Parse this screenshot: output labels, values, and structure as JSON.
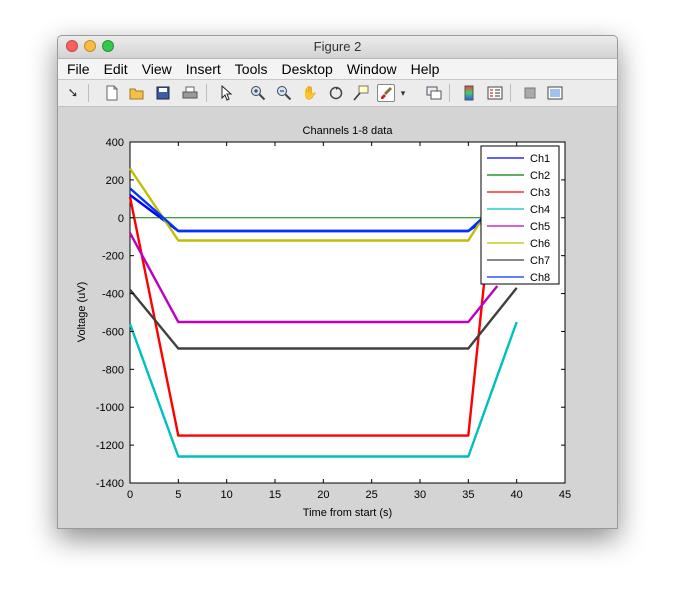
{
  "window": {
    "title": "Figure 2",
    "menu": [
      "File",
      "Edit",
      "View",
      "Insert",
      "Tools",
      "Desktop",
      "Window",
      "Help"
    ],
    "traffic_light_colors": [
      "#fc605c",
      "#fdbc40",
      "#34c84a"
    ],
    "toolbar_icons": [
      "dock-arrow-icon",
      "new-figure-icon",
      "open-file-icon",
      "save-icon",
      "print-icon",
      "pointer-icon",
      "zoom-in-icon",
      "zoom-out-icon",
      "pan-hand-icon",
      "rotate-3d-icon",
      "data-cursor-icon",
      "brush-icon",
      "brush-dropdown-icon",
      "link-plot-icon",
      "colorbar-icon",
      "legend-icon",
      "hide-plot-tools-icon",
      "show-plot-tools-icon"
    ]
  },
  "chart_data": {
    "type": "line",
    "title": "Channels 1-8 data",
    "xlabel": "Time from start (s)",
    "ylabel": "Voltage (uV)",
    "xlim": [
      0,
      45
    ],
    "ylim": [
      -1400,
      400
    ],
    "xticks": [
      0,
      5,
      10,
      15,
      20,
      25,
      30,
      35,
      40,
      45
    ],
    "yticks": [
      400,
      200,
      0,
      -200,
      -400,
      -600,
      -800,
      -1000,
      -1200,
      -1400
    ],
    "xtick_labels": [
      "0",
      "5",
      "10",
      "15",
      "20",
      "25",
      "30",
      "35",
      "40",
      "45"
    ],
    "ytick_labels": [
      "400",
      "200",
      "0",
      "-200",
      "-400",
      "-600",
      "-800",
      "-1000",
      "-1200",
      "-1400"
    ],
    "grid": false,
    "legend_position": "top-right",
    "series": [
      {
        "name": "Ch1",
        "color": "#0000ff",
        "x": [
          0,
          5,
          35,
          37
        ],
        "y": [
          120,
          -70,
          -70,
          0
        ]
      },
      {
        "name": "Ch2",
        "color": "#008000",
        "x": [
          0,
          40
        ],
        "y": [
          0,
          0
        ]
      },
      {
        "name": "Ch3",
        "color": "#ff0000",
        "x": [
          0,
          5,
          35,
          38
        ],
        "y": [
          110,
          -1150,
          -1150,
          330
        ]
      },
      {
        "name": "Ch4",
        "color": "#00bfbf",
        "x": [
          0,
          5,
          35,
          40
        ],
        "y": [
          -560,
          -1260,
          -1260,
          -550
        ]
      },
      {
        "name": "Ch5",
        "color": "#bf00bf",
        "x": [
          0,
          5,
          35,
          38
        ],
        "y": [
          -80,
          -550,
          -550,
          -360
        ]
      },
      {
        "name": "Ch6",
        "color": "#bfbf00",
        "x": [
          0,
          5,
          35,
          36.5
        ],
        "y": [
          260,
          -120,
          -120,
          0
        ]
      },
      {
        "name": "Ch7",
        "color": "#404040",
        "x": [
          0,
          5,
          35,
          40
        ],
        "y": [
          -380,
          -690,
          -690,
          -370
        ]
      },
      {
        "name": "Ch8",
        "color": "#0033ff",
        "x": [
          0,
          5,
          35,
          36.5
        ],
        "y": [
          155,
          -70,
          -70,
          0
        ]
      }
    ]
  }
}
